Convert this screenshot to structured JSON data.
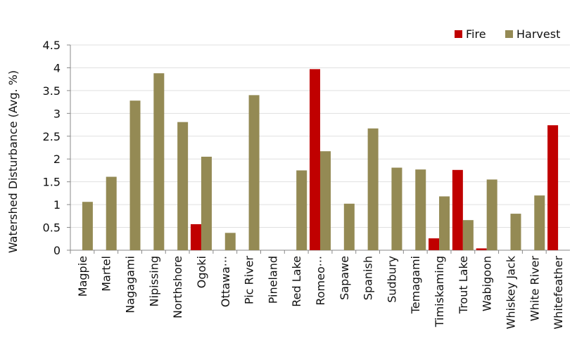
{
  "chart_data": {
    "type": "bar",
    "y_label": "Watershed Disturbance (Avg. %)",
    "categories": [
      "Magpie",
      "Martel",
      "Nagagami",
      "Nipissing",
      "Northshore",
      "Ogoki",
      "Ottawa···",
      "Pic River",
      "Pineland",
      "Red Lake",
      "Romeo···",
      "Sapawe",
      "Spanish",
      "Sudbury",
      "Temagami",
      "Timiskaming",
      "Trout Lake",
      "Wabigoon",
      "Whiskey Jack",
      "White River",
      "Whitefeather"
    ],
    "series": [
      {
        "name": "Fire",
        "color": "#c00000",
        "values": [
          null,
          null,
          null,
          null,
          null,
          0.57,
          null,
          null,
          null,
          null,
          3.97,
          null,
          null,
          null,
          null,
          0.26,
          1.76,
          0.04,
          null,
          null,
          2.74
        ]
      },
      {
        "name": "Harvest",
        "color": "#948a54",
        "values": [
          1.06,
          1.61,
          3.28,
          3.88,
          2.81,
          2.05,
          0.38,
          3.4,
          null,
          1.75,
          2.17,
          1.02,
          2.67,
          1.81,
          1.77,
          1.18,
          0.66,
          1.55,
          0.8,
          1.2,
          null
        ]
      }
    ],
    "ylim": [
      0,
      4.5
    ],
    "yticks": [
      0,
      0.5,
      1,
      1.5,
      2,
      2.5,
      3,
      3.5,
      4,
      4.5
    ],
    "grid": true,
    "legend": "top-right"
  }
}
